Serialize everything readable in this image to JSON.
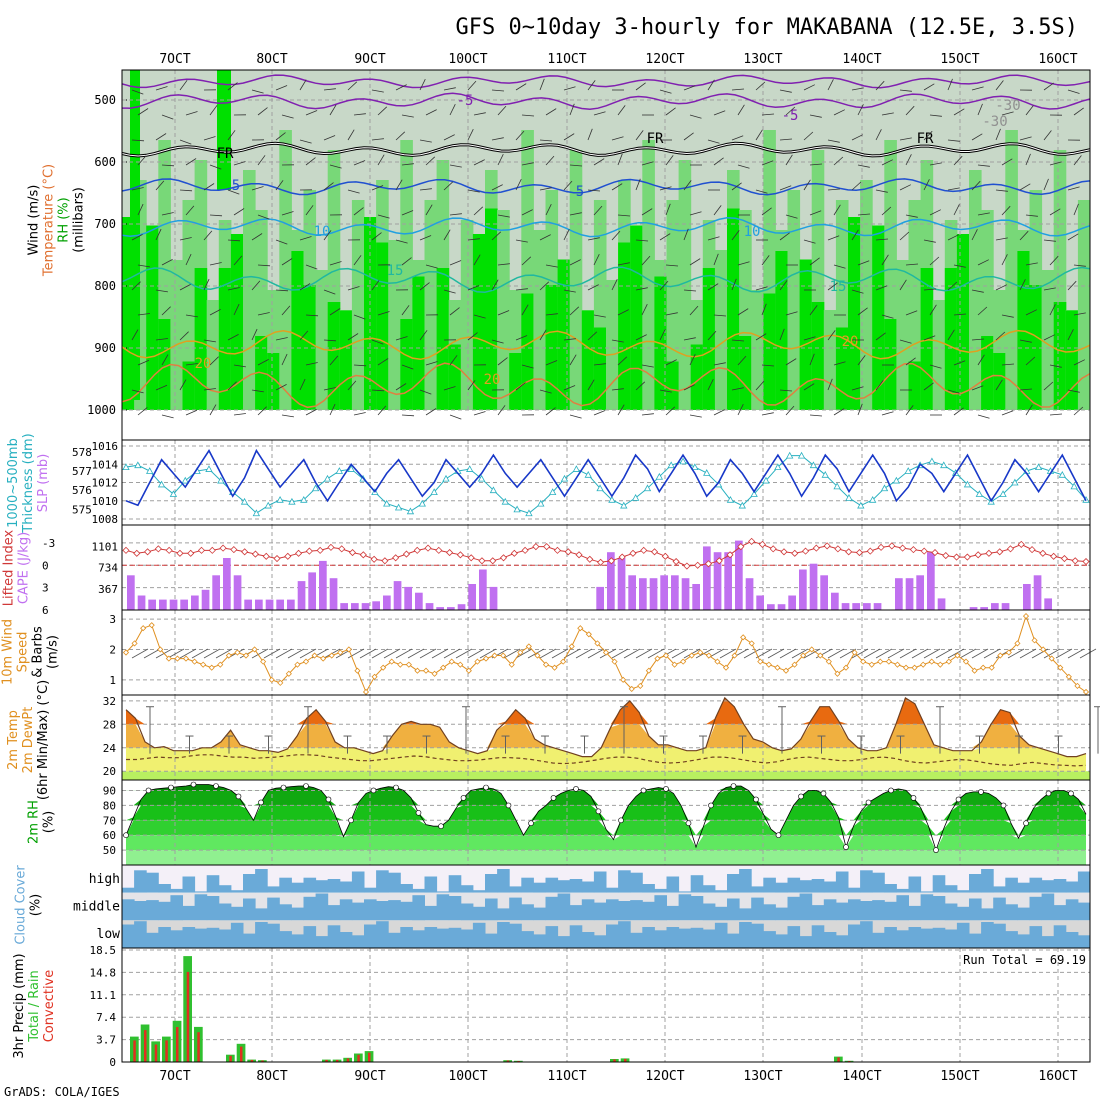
{
  "header": {
    "title": "GFS 0~10day 3-hourly for MAKABANA (12.5E, 3.5S)",
    "footer": "GrADS: COLA/IGES",
    "run_total": "Run Total = 69.19"
  },
  "date_labels": [
    "7OCT",
    "8OCT",
    "9OCT",
    "10OCT",
    "11OCT",
    "12OCT",
    "13OCT",
    "14OCT",
    "15OCT",
    "16OCT"
  ],
  "colors": {
    "rh_light": "#c8d8c8",
    "rh_mid": "#78d878",
    "rh_high": "#00e000",
    "slp": "#1838c8",
    "thickness": "#28b0c0",
    "lifted": "#d03838",
    "cape": "#c070f0",
    "wind": "#e09020",
    "precip_total": "#30c030",
    "precip_conv": "#e03020",
    "cloud_fill": "#6aaad8",
    "grid": "#a0a0a0"
  },
  "panels": {
    "upper": {
      "ylabels": [
        "Wind (m/s)",
        "Temperature (°C)",
        "RH (%)",
        "(millibars)"
      ],
      "ticks": [
        "500",
        "600",
        "700",
        "800",
        "900",
        "1000"
      ],
      "contour_labels": [
        "-5",
        "-5",
        "FR",
        "FR",
        "FR",
        "5",
        "5",
        "10",
        "10",
        "15",
        "15",
        "20",
        "20",
        "20",
        "-30",
        "-30"
      ]
    },
    "slp": {
      "ylabels": [
        "1000~500mb",
        "Thickness (dm)",
        "SLP (mb)"
      ],
      "left_ticks": [
        "578",
        "577",
        "576",
        "575"
      ],
      "right_ticks": [
        "1016",
        "1014",
        "1012",
        "1010",
        "1008"
      ]
    },
    "cape": {
      "ylabels": [
        "Lifted Index",
        "CAPE (J/kg)"
      ],
      "left_ticks": [
        "-3",
        "0",
        "3",
        "6"
      ],
      "right_ticks": [
        "1101",
        "734",
        "367"
      ]
    },
    "wind10": {
      "ylabels": [
        "10m Wind",
        "Speed",
        "& Barbs",
        "(m/s)"
      ],
      "ticks": [
        "3",
        "2",
        "1"
      ]
    },
    "temp": {
      "ylabels": [
        "2m Temp",
        "2m DewPt",
        "(6hr Min/Max) (°C)"
      ],
      "ticks": [
        "32",
        "28",
        "24",
        "20"
      ]
    },
    "rh": {
      "ylabels": [
        "2m RH",
        "(%)"
      ],
      "ticks": [
        "90",
        "80",
        "70",
        "60",
        "50"
      ]
    },
    "cloud": {
      "ylabels": [
        "Cloud Cover",
        "(%)"
      ],
      "levels": [
        "high",
        "middle",
        "low"
      ]
    },
    "precip": {
      "ylabels": [
        "3hr Precip (mm)",
        "Total / Rain",
        "Convective"
      ],
      "ticks": [
        "18.5",
        "14.8",
        "11.1",
        "7.4",
        "3.7",
        "0"
      ]
    }
  },
  "chart_data": [
    {
      "type": "line",
      "name_hint": "slp",
      "x_start": "6OCT 15Z",
      "step_hours": 3,
      "ylim": [
        1008,
        1016
      ],
      "values": [
        1010,
        1009.5,
        1012,
        1014.5,
        1013,
        1011.5,
        1013.5,
        1015.5,
        1013,
        1010.5,
        1012.5,
        1015.5,
        1013.5,
        1011.5,
        1013,
        1014.5,
        1012,
        1010,
        1012,
        1014,
        1012.5,
        1011,
        1013,
        1014.5,
        1012.5,
        1010.5,
        1012,
        1014.5,
        1013,
        1011.5,
        1013,
        1015,
        1013,
        1011.5,
        1013,
        1014.5,
        1012.5,
        1010.5,
        1012.5,
        1014.5,
        1012.5,
        1010.5,
        1012.5,
        1015,
        1013.5,
        1011,
        1013,
        1015,
        1013,
        1010.5,
        1012,
        1014.5,
        1013,
        1011,
        1013,
        1015,
        1013,
        1010.5,
        1012.5,
        1015,
        1013.5,
        1011,
        1013,
        1015,
        1013,
        1010,
        1011.5,
        1014,
        1013,
        1011,
        1013,
        1015,
        1012.5,
        1010,
        1012,
        1014.5,
        1013,
        1011,
        1013,
        1015,
        1012.5,
        1010
      ]
    },
    {
      "type": "line",
      "name_hint": "thickness",
      "ylim": [
        574.5,
        578.3
      ],
      "values": [
        577.2,
        577.3,
        577,
        576.3,
        575.8,
        576.5,
        577,
        577.1,
        576.5,
        575.9,
        575.4,
        574.8,
        575.2,
        575.5,
        575.4,
        575.5,
        576.1,
        576.6,
        577,
        577.1,
        576.6,
        575.9,
        575.3,
        575.1,
        574.9,
        575.3,
        575.9,
        576.6,
        577,
        577.1,
        576.6,
        576,
        575.4,
        575,
        574.8,
        575.3,
        575.9,
        576.6,
        577.1,
        576.8,
        576.1,
        575.5,
        575.2,
        575.6,
        576.1,
        576.7,
        577.3,
        577.5,
        577.2,
        576.9,
        576.3,
        575.5,
        575.2,
        575.8,
        576.5,
        577.2,
        577.8,
        577.8,
        577.3,
        576.8,
        576.2,
        575.6,
        575.2,
        575.5,
        576.1,
        576.5,
        577,
        577.3,
        577.5,
        577.3,
        576.9,
        576.3,
        575.8,
        575.4,
        575.8,
        576.4,
        577,
        577.2,
        577,
        576.8,
        576.2,
        575.5
      ]
    },
    {
      "type": "bar",
      "name_hint": "cape",
      "ylim": [
        0,
        1470
      ],
      "values": [
        600,
        250,
        180,
        180,
        180,
        180,
        250,
        350,
        600,
        900,
        600,
        180,
        180,
        180,
        180,
        180,
        500,
        650,
        850,
        550,
        120,
        120,
        120,
        150,
        250,
        500,
        400,
        300,
        120,
        50,
        50,
        100,
        450,
        700,
        400,
        0,
        0,
        0,
        0,
        0,
        0,
        0,
        0,
        0,
        400,
        1000,
        900,
        600,
        550,
        550,
        600,
        600,
        550,
        450,
        1100,
        1000,
        1000,
        1200,
        550,
        250,
        100,
        100,
        250,
        700,
        800,
        600,
        300,
        120,
        120,
        120,
        120,
        0,
        550,
        550,
        600,
        1000,
        200,
        0,
        0,
        50,
        50,
        120,
        120,
        0,
        450,
        600,
        200,
        0,
        0,
        0
      ]
    },
    {
      "type": "line",
      "name_hint": "lifted_index",
      "ylim": [
        6,
        -5.4
      ],
      "values": [
        -2,
        -1.6,
        -1.8,
        -2.2,
        -2,
        -1.6,
        -1.6,
        -2,
        -2,
        -2.3,
        -2.1,
        -1.8,
        -1.5,
        -1.2,
        -0.9,
        -1.2,
        -1.6,
        -1.9,
        -2,
        -2.4,
        -2.2,
        -1.7,
        -1.4,
        -0.8,
        -0.6,
        -1,
        -1.5,
        -2,
        -2.3,
        -2,
        -1.7,
        -1.4,
        -1,
        -0.6,
        -0.6,
        -1,
        -1.6,
        -2,
        -2.5,
        -2.5,
        -2,
        -1.8,
        -1.4,
        -0.8,
        -0.4,
        -0.6,
        -1.1,
        -1.6,
        -2,
        -1.8,
        -1.2,
        -0.5,
        0.1,
        0,
        -0.2,
        -0.6,
        -1.4,
        -2.5,
        -3.2,
        -2.8,
        -2.2,
        -1.8,
        -1.6,
        -1.9,
        -2.3,
        -2.6,
        -2.2,
        -1.8,
        -1.7,
        -1.9,
        -2.4,
        -2.6,
        -2.3,
        -2.1,
        -1.9,
        -1.7,
        -1.3,
        -1.1,
        -1.1,
        -1.4,
        -1.6,
        -1.8,
        -2.2,
        -2.8,
        -2.1,
        -1.6,
        -1.2,
        -0.9,
        -0.6,
        -0.5
      ]
    },
    {
      "type": "line",
      "name_hint": "wind10_speed",
      "ylim": [
        0.5,
        3.3
      ],
      "values": [
        1.9,
        2.2,
        2.7,
        2.8,
        2.0,
        1.7,
        1.7,
        1.7,
        1.6,
        1.5,
        1.4,
        1.5,
        1.8,
        1.9,
        1.8,
        2.0,
        1.6,
        1.0,
        0.9,
        1.2,
        1.5,
        1.6,
        1.8,
        1.7,
        1.8,
        1.9,
        2.0,
        1.3,
        0.6,
        1.1,
        1.4,
        1.6,
        1.5,
        1.5,
        1.3,
        1.3,
        1.2,
        1.4,
        1.6,
        1.5,
        1.3,
        1.6,
        1.7,
        1.8,
        1.8,
        1.5,
        1.9,
        2.1,
        1.8,
        1.5,
        1.4,
        1.6,
        2.1,
        2.7,
        2.5,
        2.2,
        1.9,
        1.6,
        1.0,
        0.7,
        0.8,
        1.3,
        1.7,
        1.8,
        1.5,
        1.6,
        1.8,
        1.9,
        1.8,
        1.6,
        1.4,
        1.8,
        2.4,
        2.2,
        1.6,
        1.5,
        1.4,
        1.3,
        1.5,
        1.8,
        2.0,
        1.8,
        1.6,
        1.2,
        1.4,
        1.9,
        1.6,
        1.5,
        1.6,
        1.6,
        1.5,
        1.4,
        1.4,
        1.5,
        1.6,
        1.5,
        1.6,
        1.8,
        1.6,
        1.3,
        1.4,
        1.4,
        1.8,
        1.9,
        2.2,
        3.1,
        2.3,
        2.0,
        1.7,
        1.4,
        1.1,
        0.8,
        0.6
      ]
    },
    {
      "type": "area",
      "name_hint": "temp2m",
      "ylim": [
        18.5,
        33
      ],
      "values": [
        30.5,
        29,
        25,
        24,
        24.2,
        23.5,
        23.5,
        23.5,
        24,
        24,
        25,
        27,
        24.5,
        24,
        23.5,
        23.5,
        23.2,
        23.8,
        26,
        29,
        30.5,
        28.5,
        25,
        24,
        24,
        23.5,
        23,
        23.5,
        26,
        28,
        28.5,
        28,
        28,
        27.5,
        25,
        24,
        23.5,
        23,
        23.5,
        27,
        28.5,
        30.5,
        29,
        25.5,
        24.5,
        24,
        23.5,
        23,
        22.5,
        22.5,
        24,
        27.5,
        30.5,
        32,
        30,
        26,
        24.5,
        24.5,
        24,
        23.5,
        23.5,
        24,
        29,
        32.5,
        31,
        28,
        25.5,
        25,
        24,
        23.5,
        23.8,
        25.5,
        28.5,
        31,
        31,
        28.5,
        25.5,
        24,
        23.5,
        23.5,
        24,
        28,
        32.5,
        31.5,
        28,
        24.5,
        24,
        23.5,
        23.5,
        23.5,
        25,
        28,
        30.5,
        30,
        26,
        24.5,
        24,
        23.5,
        23,
        22.5,
        22.5,
        23
      ]
    },
    {
      "type": "line",
      "name_hint": "dewpoint2m",
      "values": [
        22,
        22,
        22.2,
        22.4,
        22.3,
        22.3,
        22.6,
        22.8,
        22.8,
        22.6,
        22.4,
        22.4,
        22.2,
        22.3,
        22.4,
        22.6,
        22.8,
        22.8,
        22.7,
        22.4,
        22.2,
        22,
        21.8,
        21.8,
        22,
        22.2,
        22.4,
        22.6,
        22.5,
        22.2,
        22,
        21.8,
        21.8,
        21.9,
        22.1,
        22.3,
        22.3,
        22.2,
        22,
        21.7,
        21.4,
        21.3,
        21.4,
        21.6,
        21.9,
        22.2,
        22.4,
        22.4,
        22.2,
        21.8,
        21.5,
        21.4,
        21.5,
        21.8,
        22.1,
        22.4,
        22.4,
        22.2,
        21.9,
        21.6,
        21.4,
        21.6,
        22,
        22.3,
        22.4,
        22.2,
        22,
        21.8,
        21.8,
        22,
        22.3,
        22.4,
        22.2,
        21.8,
        21.5,
        21.4,
        21.6,
        21.8,
        22,
        21.9,
        21.6,
        21.3,
        21.1,
        21,
        21.3,
        21.5,
        21.3,
        21.1,
        21,
        20.9,
        21
      ]
    },
    {
      "type": "area",
      "name_hint": "rh2m",
      "ylim": [
        40,
        97
      ],
      "values": [
        60,
        72,
        84,
        90,
        91,
        91.5,
        92,
        92.5,
        93,
        94,
        94,
        94,
        93,
        92,
        90,
        86,
        78,
        70,
        82,
        90,
        91.5,
        92,
        92.5,
        93,
        93,
        92,
        90,
        84,
        72,
        59,
        70,
        82,
        88,
        90,
        91.5,
        92.5,
        92,
        90,
        85,
        75,
        67,
        66,
        66,
        70,
        78,
        85,
        90,
        91,
        92,
        91,
        88,
        80,
        70,
        60,
        68,
        76,
        80,
        85,
        88,
        90,
        91,
        90,
        86,
        76,
        64,
        57,
        70,
        80,
        86,
        90,
        91,
        92,
        91,
        88,
        80,
        68,
        52,
        66,
        80,
        88,
        92,
        93,
        93,
        90,
        84,
        74,
        64,
        60,
        70,
        80,
        86,
        90,
        90,
        88,
        82,
        72,
        52,
        66,
        76,
        82,
        85,
        88,
        90,
        91,
        90,
        85,
        78,
        66,
        50,
        64,
        76,
        84,
        88,
        89,
        89,
        88,
        85,
        80,
        68,
        58,
        68,
        78,
        84,
        88,
        90,
        90,
        88,
        84,
        74
      ]
    },
    {
      "type": "bar",
      "name_hint": "precip_3hr",
      "ylim": [
        0,
        18.5
      ],
      "series": [
        {
          "values": [
            4.2,
            6.2,
            3.4,
            4.2,
            6.8,
            17.5,
            5.8,
            0,
            0,
            1.2,
            3.0,
            0.4,
            0.3,
            0,
            0,
            0,
            0,
            0,
            0.4,
            0.4,
            0.7,
            1.4,
            1.8,
            0,
            0,
            0,
            0,
            0,
            0,
            0,
            0,
            0,
            0,
            0,
            0,
            0.3,
            0.2,
            0,
            0,
            0,
            0,
            0,
            0,
            0,
            0,
            0.5,
            0.6,
            0,
            0,
            0,
            0,
            0,
            0,
            0,
            0,
            0,
            0,
            0,
            0,
            0,
            0,
            0,
            0,
            0,
            0,
            0,
            0.9,
            0.2,
            0,
            0,
            0,
            0,
            0,
            0,
            0,
            0,
            0,
            0,
            0,
            0,
            0,
            0,
            0,
            0,
            0,
            0,
            0,
            0,
            0,
            0
          ]
        }
      ]
    }
  ]
}
